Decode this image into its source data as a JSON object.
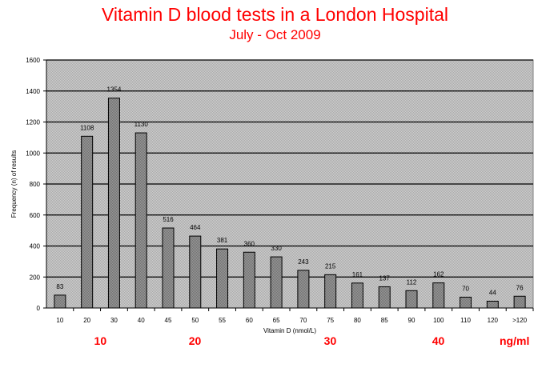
{
  "title": "Vitamin D blood tests in a London Hospital",
  "subtitle": "July - Oct 2009",
  "chart_data": {
    "type": "bar",
    "title": "Vitamin D blood tests in a London Hospital",
    "subtitle": "July - Oct 2009",
    "xlabel": "Vitamin D (nmol/L)",
    "ylabel": "Frequency (n) of results",
    "categories": [
      "10",
      "20",
      "30",
      "40",
      "45",
      "50",
      "55",
      "60",
      "65",
      "70",
      "75",
      "80",
      "85",
      "90",
      "100",
      "110",
      "120",
      ">120"
    ],
    "values": [
      83,
      1108,
      1354,
      1130,
      516,
      464,
      381,
      360,
      330,
      243,
      215,
      161,
      137,
      112,
      162,
      70,
      44,
      76
    ],
    "ylim": [
      0,
      1600
    ],
    "yticks": [
      0,
      200,
      400,
      600,
      800,
      1000,
      1200,
      1400,
      1600
    ],
    "grid": true,
    "secondary_axis": {
      "unit": "ng/ml",
      "labels": [
        {
          "label": "10",
          "at_category_index": 1.5
        },
        {
          "label": "20",
          "at_category_index": 5
        },
        {
          "label": "30",
          "at_category_index": 10
        },
        {
          "label": "40",
          "at_category_index": 14
        }
      ]
    },
    "colors": {
      "bar": "#8c8c8c",
      "plot_bg": "#c0c0c0",
      "accent": "#ff0000"
    }
  }
}
